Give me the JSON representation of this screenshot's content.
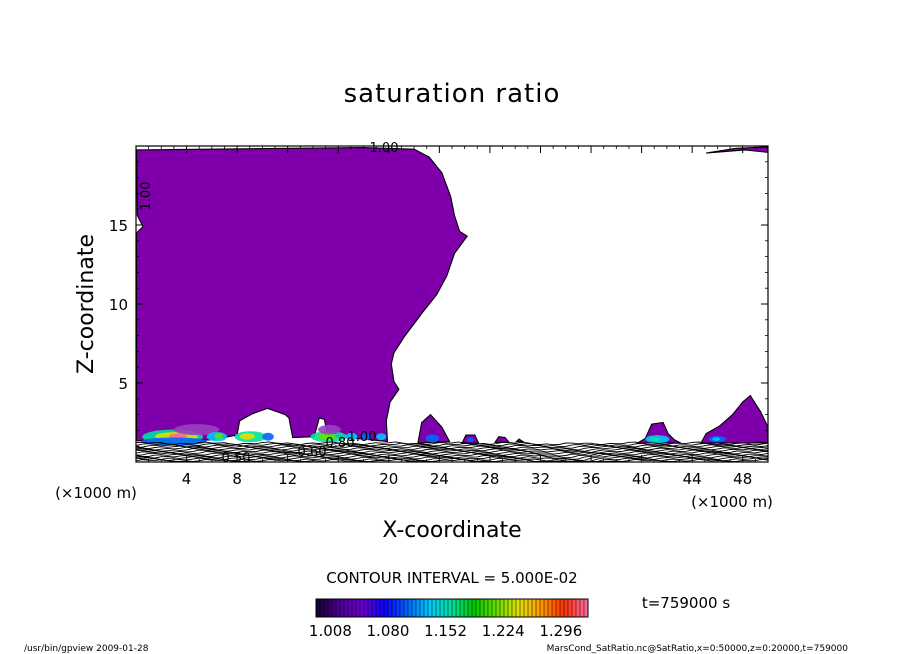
{
  "chart_data": {
    "type": "contour",
    "title": "saturation ratio",
    "xlabel": "X-coordinate",
    "ylabel": "Z-coordinate",
    "x_unit_label": "(×1000 m)",
    "y_unit_label": "(×1000 m)",
    "xlim": [
      0,
      50
    ],
    "ylim": [
      0,
      20
    ],
    "x_ticks": [
      4,
      8,
      12,
      16,
      20,
      24,
      28,
      32,
      36,
      40,
      44,
      48
    ],
    "y_ticks": [
      5,
      10,
      15
    ],
    "contour_labels": [
      "1.00",
      "1.00",
      "0.50",
      "0.60",
      "0.80",
      "1.00"
    ],
    "contour_interval_text": "CONTOUR INTERVAL = 5.000E-02",
    "colorbar": {
      "tick_labels": [
        "1.008",
        "1.080",
        "1.152",
        "1.224",
        "1.296"
      ],
      "range": [
        0.99,
        1.33
      ],
      "colors": [
        "#1a0033",
        "#4d0099",
        "#6a00cc",
        "#0a00ff",
        "#0066ff",
        "#00c8ff",
        "#00e0a0",
        "#00c800",
        "#66e000",
        "#e0e000",
        "#ff9900",
        "#ff3300",
        "#ff6699"
      ]
    },
    "time_label": "t=759000 s",
    "fill_color_saturated": "#7f00aa",
    "footer_left": "/usr/bin/gpview   2009-01-28",
    "footer_right": "MarsCond_SatRatio.nc@SatRatio,x=0:50000,z=0:20000,t=759000"
  }
}
